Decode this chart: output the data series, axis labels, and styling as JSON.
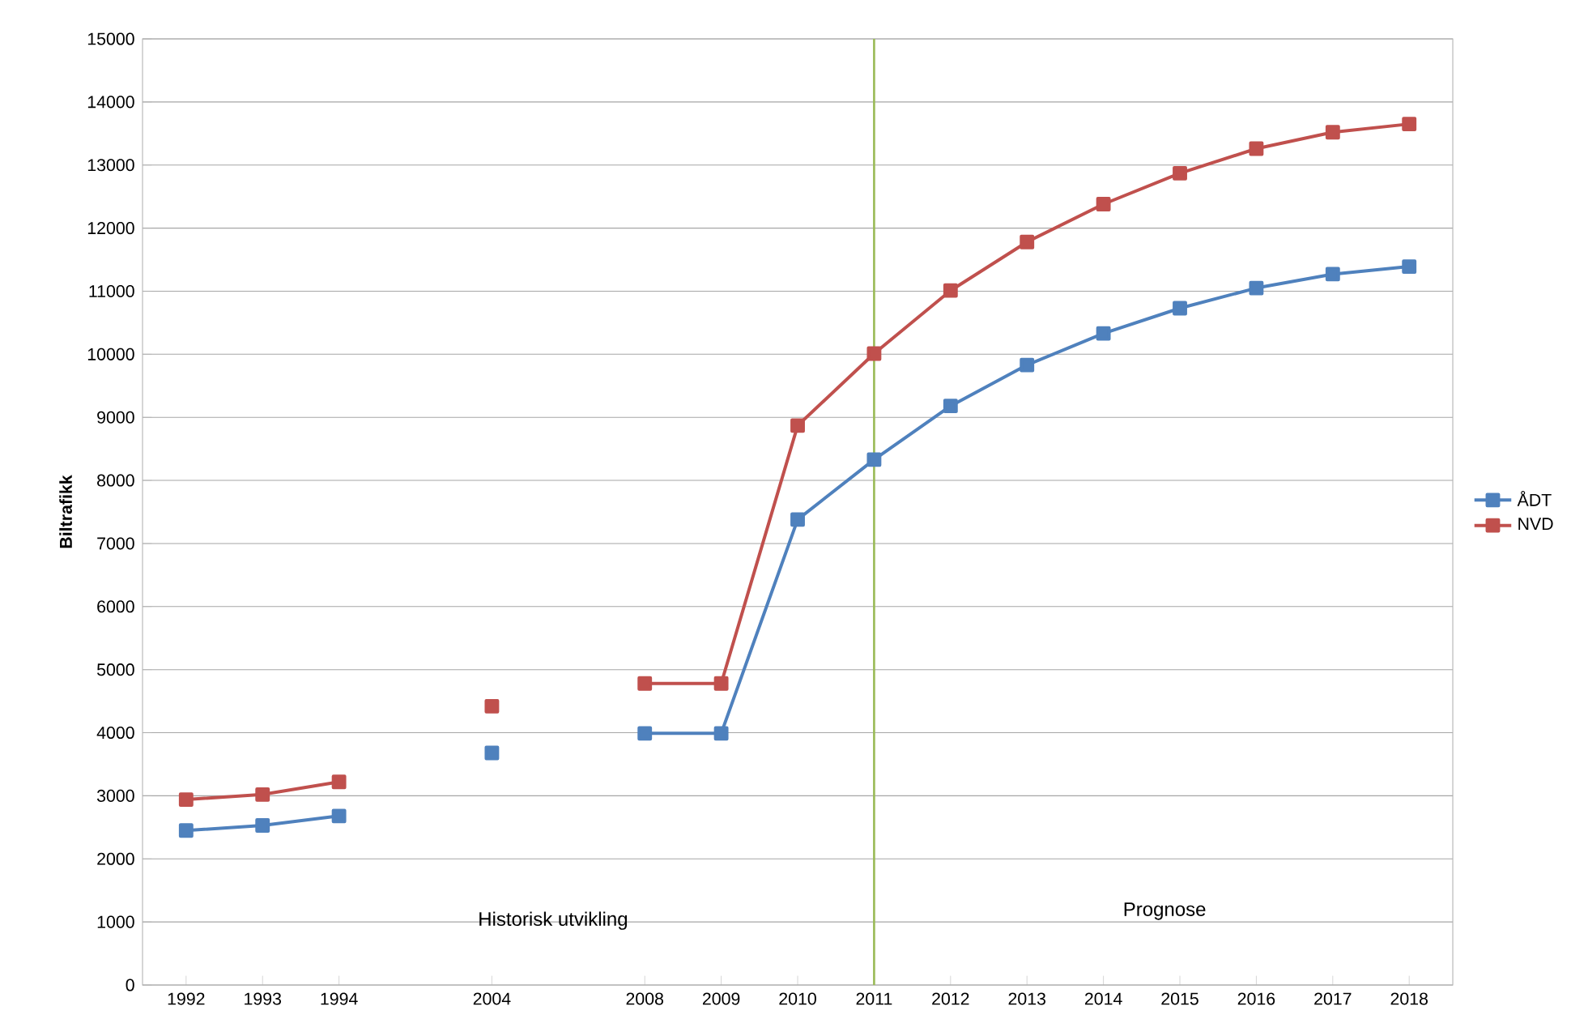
{
  "chart_data": {
    "type": "line",
    "ylabel": "Biltrafikk",
    "categories": [
      "1992",
      "1993",
      "1994",
      null,
      "2004",
      null,
      "2008",
      "2009",
      "2010",
      "2011",
      "2012",
      "2013",
      "2014",
      "2015",
      "2016",
      "2017",
      "2018"
    ],
    "series": [
      {
        "name": "ÅDT",
        "color": "#4f81bd",
        "values": [
          2450,
          2530,
          2680,
          null,
          3680,
          null,
          3990,
          3990,
          7380,
          8330,
          9180,
          9830,
          10330,
          10730,
          11050,
          11270,
          11390
        ]
      },
      {
        "name": "NVD",
        "color": "#c0504d",
        "values": [
          2940,
          3020,
          3220,
          null,
          4420,
          null,
          4780,
          4780,
          8870,
          10010,
          11010,
          11780,
          12380,
          12870,
          13260,
          13520,
          13650
        ]
      }
    ],
    "ylim": [
      0,
      15000
    ],
    "yticks": [
      0,
      1000,
      2000,
      3000,
      4000,
      5000,
      6000,
      7000,
      8000,
      9000,
      10000,
      11000,
      12000,
      13000,
      14000,
      15000
    ],
    "ref_lines": [
      {
        "axis": "x",
        "value": "2011",
        "color": "#9bbb59"
      }
    ],
    "annotations": [
      "Historisk utvikling",
      "Prognose"
    ],
    "grid": "y",
    "legend": "right",
    "marker": "square",
    "line_style": "solid"
  }
}
